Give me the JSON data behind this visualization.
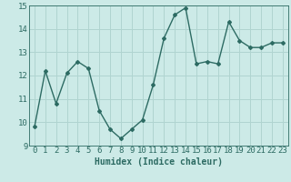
{
  "x": [
    0,
    1,
    2,
    3,
    4,
    5,
    6,
    7,
    8,
    9,
    10,
    11,
    12,
    13,
    14,
    15,
    16,
    17,
    18,
    19,
    20,
    21,
    22,
    23
  ],
  "y": [
    9.8,
    12.2,
    10.8,
    12.1,
    12.6,
    12.3,
    10.5,
    9.7,
    9.3,
    9.7,
    10.1,
    11.6,
    13.6,
    14.6,
    14.9,
    12.5,
    12.6,
    12.5,
    14.3,
    13.5,
    13.2,
    13.2,
    13.4,
    13.4
  ],
  "line_color": "#2d6b63",
  "bg_color": "#cceae7",
  "grid_color": "#b0d4d0",
  "xlabel": "Humidex (Indice chaleur)",
  "ylim": [
    9,
    15
  ],
  "xlim": [
    -0.5,
    23.5
  ],
  "yticks": [
    9,
    10,
    11,
    12,
    13,
    14,
    15
  ],
  "xticks": [
    0,
    1,
    2,
    3,
    4,
    5,
    6,
    7,
    8,
    9,
    10,
    11,
    12,
    13,
    14,
    15,
    16,
    17,
    18,
    19,
    20,
    21,
    22,
    23
  ],
  "xlabel_fontsize": 7,
  "tick_fontsize": 6.5,
  "marker": "D",
  "markersize": 2.0,
  "linewidth": 1.0
}
